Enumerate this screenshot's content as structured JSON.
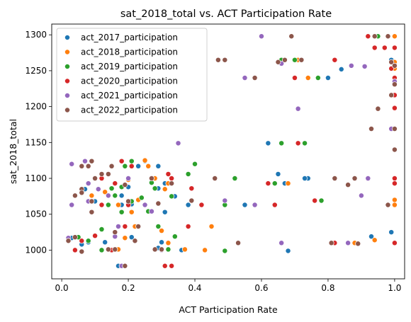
{
  "chart_data": {
    "type": "scatter",
    "title": "sat_2018_total vs. ACT Participation Rate",
    "xlabel": "ACT Participation Rate",
    "ylabel": "sat_2018_total",
    "xlim": [
      -0.03,
      1.03
    ],
    "ylim": [
      960,
      1315
    ],
    "xticks": [
      0.0,
      0.2,
      0.4,
      0.6,
      0.8,
      1.0
    ],
    "yticks": [
      1000,
      1050,
      1100,
      1150,
      1200,
      1250,
      1300
    ],
    "legend_position": "upper-left",
    "series": [
      {
        "name": "act_2017_participation",
        "color": "#1f77b4",
        "points": [
          [
            1.0,
            1298
          ],
          [
            0.99,
            1265
          ],
          [
            0.84,
            1252
          ],
          [
            0.8,
            1240
          ],
          [
            0.62,
            1149
          ],
          [
            0.65,
            1106
          ],
          [
            0.74,
            1100
          ],
          [
            0.73,
            1100
          ],
          [
            0.67,
            1093
          ],
          [
            0.99,
            1025
          ],
          [
            0.93,
            1019
          ],
          [
            0.68,
            999
          ],
          [
            1.0,
            1010
          ],
          [
            0.18,
            1076
          ],
          [
            0.07,
            1085
          ],
          [
            0.29,
            1117
          ],
          [
            0.25,
            1124
          ],
          [
            0.23,
            1117
          ],
          [
            0.31,
            1093
          ],
          [
            0.29,
            1086
          ],
          [
            0.34,
            1075
          ],
          [
            0.18,
            1063
          ],
          [
            0.1,
            1068
          ],
          [
            0.21,
            1064
          ],
          [
            0.31,
            1053
          ],
          [
            0.55,
            1063
          ],
          [
            0.38,
            1063
          ],
          [
            0.3,
            1011
          ],
          [
            0.29,
            1003
          ],
          [
            0.21,
            1018
          ],
          [
            0.13,
            1011
          ],
          [
            0.08,
            1011
          ],
          [
            0.06,
            1008
          ],
          [
            0.03,
            1017
          ],
          [
            0.36,
            1000
          ],
          [
            0.17,
            978
          ],
          [
            0.2,
            1088
          ],
          [
            0.27,
            1095
          ]
        ]
      },
      {
        "name": "act_2018_participation",
        "color": "#ff7f0e",
        "points": [
          [
            1.0,
            1298
          ],
          [
            1.0,
            1282
          ],
          [
            1.0,
            1262
          ],
          [
            1.0,
            1253
          ],
          [
            0.71,
            1265
          ],
          [
            0.74,
            1240
          ],
          [
            0.88,
            1010
          ],
          [
            0.94,
            1014
          ],
          [
            1.0,
            1070
          ],
          [
            1.0,
            1063
          ],
          [
            0.68,
            1093
          ],
          [
            0.45,
            1033
          ],
          [
            0.43,
            1000
          ],
          [
            0.32,
            1010
          ],
          [
            0.3,
            1027
          ],
          [
            0.37,
            1001
          ],
          [
            0.31,
            1085
          ],
          [
            0.32,
            1093
          ],
          [
            0.25,
            1125
          ],
          [
            0.26,
            1117
          ],
          [
            0.2,
            1098
          ],
          [
            0.13,
            1081
          ],
          [
            0.14,
            1076
          ],
          [
            0.23,
            1070
          ],
          [
            0.17,
            1063
          ],
          [
            0.21,
            1053
          ],
          [
            0.28,
            1100
          ],
          [
            0.08,
            1013
          ],
          [
            0.17,
            1001
          ],
          [
            0.19,
            1017
          ],
          [
            0.09,
            1076
          ],
          [
            0.04,
            1076
          ],
          [
            0.22,
            1033
          ],
          [
            0.35,
            1149
          ]
        ]
      },
      {
        "name": "act_2019_participation",
        "color": "#2ca02c",
        "points": [
          [
            0.95,
            1298
          ],
          [
            0.66,
            1265
          ],
          [
            0.7,
            1265
          ],
          [
            0.72,
            1265
          ],
          [
            0.77,
            1240
          ],
          [
            0.73,
            1149
          ],
          [
            0.66,
            1149
          ],
          [
            0.81,
            1010
          ],
          [
            0.78,
            1069
          ],
          [
            0.64,
            1093
          ],
          [
            0.52,
            1100
          ],
          [
            0.49,
            1063
          ],
          [
            0.49,
            999
          ],
          [
            0.32,
            1001
          ],
          [
            0.38,
            1106
          ],
          [
            0.33,
            1075
          ],
          [
            0.34,
            1019
          ],
          [
            0.29,
            1033
          ],
          [
            0.21,
            1124
          ],
          [
            0.19,
            1117
          ],
          [
            0.28,
            1086
          ],
          [
            0.16,
            1076
          ],
          [
            0.18,
            1053
          ],
          [
            0.21,
            1068
          ],
          [
            0.15,
            1086
          ],
          [
            0.14,
            1063
          ],
          [
            0.12,
            1029
          ],
          [
            0.12,
            1000
          ],
          [
            0.05,
            1018
          ],
          [
            0.08,
            1013
          ],
          [
            0.26,
            1054
          ],
          [
            0.27,
            1094
          ],
          [
            0.18,
            1088
          ],
          [
            0.4,
            1120
          ],
          [
            0.24,
            1073
          ]
        ]
      },
      {
        "name": "act_2020_participation",
        "color": "#d62728",
        "points": [
          [
            0.92,
            1298
          ],
          [
            0.94,
            1282
          ],
          [
            0.97,
            1282
          ],
          [
            1.0,
            1282
          ],
          [
            0.82,
            1265
          ],
          [
            0.99,
            1253
          ],
          [
            1.0,
            1240
          ],
          [
            1.0,
            1216
          ],
          [
            1.0,
            1198
          ],
          [
            0.7,
            1240
          ],
          [
            0.71,
            1149
          ],
          [
            0.99,
            1169
          ],
          [
            0.76,
            1069
          ],
          [
            0.82,
            1010
          ],
          [
            1.0,
            1010
          ],
          [
            1.0,
            1100
          ],
          [
            1.0,
            1093
          ],
          [
            0.62,
            1093
          ],
          [
            0.64,
            1063
          ],
          [
            0.39,
            1086
          ],
          [
            0.38,
            1033
          ],
          [
            0.42,
            1063
          ],
          [
            0.32,
            1106
          ],
          [
            0.33,
            1100
          ],
          [
            0.31,
            978
          ],
          [
            0.33,
            978
          ],
          [
            0.27,
            1100
          ],
          [
            0.18,
            1124
          ],
          [
            0.21,
            1117
          ],
          [
            0.16,
            1093
          ],
          [
            0.12,
            1063
          ],
          [
            0.1,
            1020
          ],
          [
            0.15,
            1000
          ],
          [
            0.19,
            1033
          ],
          [
            0.06,
            1013
          ],
          [
            0.04,
            1000
          ],
          [
            0.2,
            1063
          ],
          [
            0.12,
            1100
          ]
        ]
      },
      {
        "name": "act_2021_participation",
        "color": "#9467bd",
        "points": [
          [
            0.6,
            1298
          ],
          [
            0.71,
            1197
          ],
          [
            0.66,
            1260
          ],
          [
            0.87,
            1257
          ],
          [
            0.91,
            1256
          ],
          [
            1.0,
            1235
          ],
          [
            0.99,
            1169
          ],
          [
            0.55,
            1240
          ],
          [
            0.35,
            1149
          ],
          [
            0.49,
            1069
          ],
          [
            0.58,
            1063
          ],
          [
            0.66,
            1010
          ],
          [
            0.92,
            1100
          ],
          [
            0.9,
            1076
          ],
          [
            0.98,
            1063
          ],
          [
            0.86,
            1010
          ],
          [
            0.03,
            1120
          ],
          [
            0.07,
            1124
          ],
          [
            0.08,
            1093
          ],
          [
            0.03,
            1063
          ],
          [
            0.02,
            1017
          ],
          [
            0.16,
            1019
          ],
          [
            0.18,
            978
          ],
          [
            0.27,
            1054
          ],
          [
            0.25,
            1063
          ],
          [
            0.2,
            1100
          ],
          [
            0.11,
            1085
          ],
          [
            0.14,
            1076
          ],
          [
            0.17,
            1033
          ],
          [
            0.08,
            1068
          ],
          [
            0.3,
            1000
          ]
        ]
      },
      {
        "name": "act_2022_participation",
        "color": "#8c564b",
        "points": [
          [
            0.69,
            1298
          ],
          [
            0.65,
            1262
          ],
          [
            0.67,
            1265
          ],
          [
            0.72,
            1265
          ],
          [
            0.47,
            1265
          ],
          [
            0.49,
            1265
          ],
          [
            0.58,
            1240
          ],
          [
            0.81,
            1010
          ],
          [
            0.89,
            1009
          ],
          [
            0.94,
            1298
          ],
          [
            0.98,
            1298
          ],
          [
            0.99,
            1262
          ],
          [
            1.0,
            1257
          ],
          [
            1.0,
            1231
          ],
          [
            0.99,
            1216
          ],
          [
            0.93,
            1169
          ],
          [
            0.95,
            1197
          ],
          [
            1.0,
            1169
          ],
          [
            1.0,
            1140
          ],
          [
            0.98,
            1063
          ],
          [
            0.82,
            1100
          ],
          [
            0.88,
            1100
          ],
          [
            0.86,
            1091
          ],
          [
            0.53,
            1010
          ],
          [
            0.46,
            1100
          ],
          [
            0.39,
            1069
          ],
          [
            0.29,
            1065
          ],
          [
            0.33,
            1093
          ],
          [
            0.27,
            1100
          ],
          [
            0.19,
            1091
          ],
          [
            0.14,
            1106
          ],
          [
            0.12,
            1106
          ],
          [
            0.1,
            1100
          ],
          [
            0.06,
            1117
          ],
          [
            0.08,
            1117
          ],
          [
            0.09,
            1124
          ],
          [
            0.06,
            1085
          ],
          [
            0.06,
            1080
          ],
          [
            0.09,
            1068
          ],
          [
            0.09,
            1053
          ],
          [
            0.04,
            1076
          ],
          [
            0.02,
            1013
          ],
          [
            0.04,
            1018
          ],
          [
            0.06,
            998
          ],
          [
            0.16,
            1025
          ],
          [
            0.14,
            1001
          ],
          [
            0.16,
            1001
          ],
          [
            0.19,
            978
          ],
          [
            0.22,
            1013
          ],
          [
            0.28,
            1001
          ],
          [
            0.23,
            1033
          ],
          [
            0.15,
            1117
          ],
          [
            0.2,
            1068
          ],
          [
            0.3,
            1001
          ]
        ]
      }
    ]
  }
}
